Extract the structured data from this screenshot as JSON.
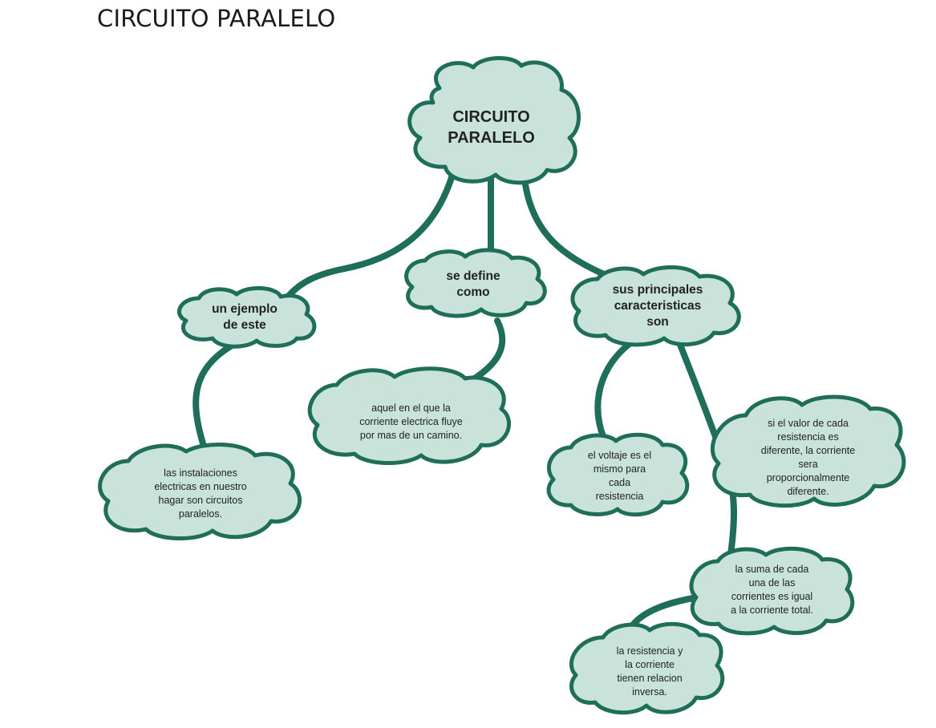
{
  "title": "CIRCUITO PARALELO",
  "nodes": {
    "root": "CIRCUITO\nPARALELO",
    "example": "un ejemplo\nde este",
    "definition": "se define\ncomo",
    "characteristics": "sus principales\ncaracteristicas\nson",
    "example_detail": "las instalaciones\nelectricas en nuestro\nhagar son circuitos\nparalelos.",
    "definition_detail": "aquel en el que la\ncorriente electrica fluye\npor mas de un camino.",
    "voltage": "el voltaje es el\nmismo para\ncada\nresistencia",
    "resistance_value": "si el valor de cada\nresistencia es\ndiferente, la corriente\nsera\nproporcionalmente\ndiferente.",
    "current_sum": "la suma de cada\nuna de las\ncorrientes es igual\na la corriente total.",
    "inverse": "la resistencia y\nla corriente\ntienen relacion\ninversa."
  },
  "colors": {
    "cloud_fill": "#c9e3db",
    "cloud_stroke": "#1f6e5a",
    "connector": "#1f6e5a"
  }
}
